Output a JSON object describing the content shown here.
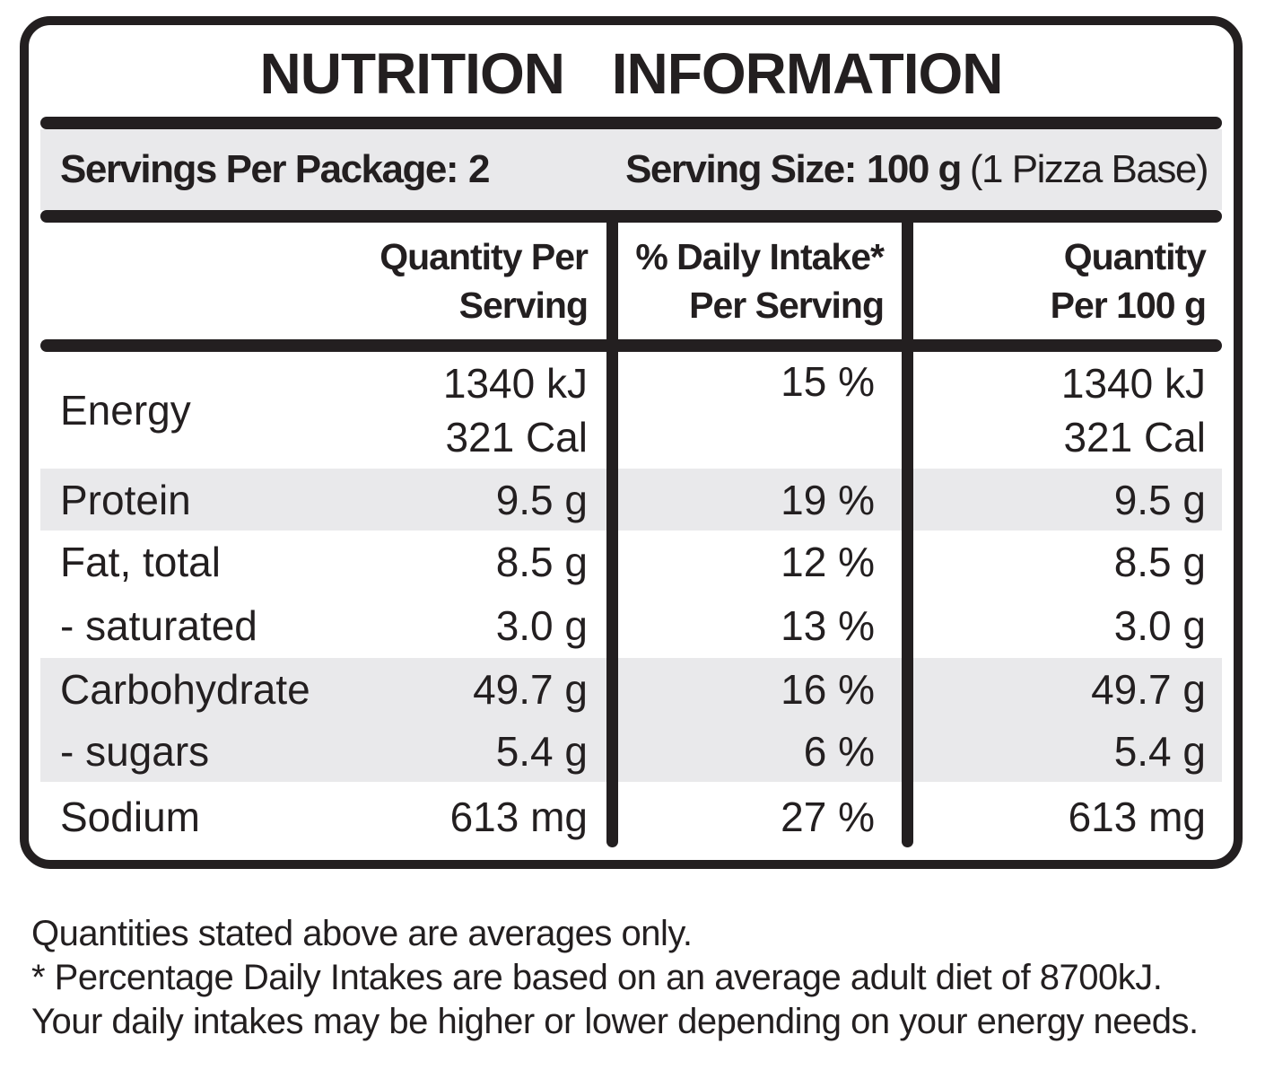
{
  "title": "NUTRITION INFORMATION",
  "serving_info": {
    "servings_label": "Servings Per Package:",
    "servings_value": "2",
    "size_label": "Serving Size:",
    "size_value": "100 g",
    "size_note": "(1 Pizza Base)"
  },
  "table": {
    "headers": {
      "qty_serving": [
        "Quantity Per",
        "Serving"
      ],
      "daily_intake": [
        "% Daily Intake*",
        "Per Serving"
      ],
      "qty_100": [
        "Quantity",
        "Per 100 g"
      ]
    },
    "rows": [
      {
        "name": "Energy",
        "qty_serving": [
          "1340 kJ",
          "321 Cal"
        ],
        "daily_intake": "15 %",
        "qty_100": [
          "1340 kJ",
          "321 Cal"
        ]
      },
      {
        "name": "Protein",
        "qty_serving": [
          "9.5 g"
        ],
        "daily_intake": "19 %",
        "qty_100": [
          "9.5 g"
        ]
      },
      {
        "name": "Fat, total",
        "qty_serving": [
          "8.5 g"
        ],
        "daily_intake": "12 %",
        "qty_100": [
          "8.5 g"
        ]
      },
      {
        "name": "- saturated",
        "qty_serving": [
          "3.0 g"
        ],
        "daily_intake": "13 %",
        "qty_100": [
          "3.0 g"
        ]
      },
      {
        "name": "Carbohydrate",
        "qty_serving": [
          "49.7 g"
        ],
        "daily_intake": "16 %",
        "qty_100": [
          "49.7 g"
        ]
      },
      {
        "name": "- sugars",
        "qty_serving": [
          "5.4 g"
        ],
        "daily_intake": "6 %",
        "qty_100": [
          "5.4 g"
        ]
      },
      {
        "name": "Sodium",
        "qty_serving": [
          "613 mg"
        ],
        "daily_intake": "27 %",
        "qty_100": [
          "613 mg"
        ]
      }
    ]
  },
  "footnotes": {
    "line1": "Quantities stated above are averages only.",
    "line2": "* Percentage Daily Intakes are based on an average adult diet of 8700kJ. Your daily intakes may be higher or lower depending on your energy needs."
  },
  "colors": {
    "ink": "#231f20",
    "shaded_band": "#e9e9eb"
  }
}
